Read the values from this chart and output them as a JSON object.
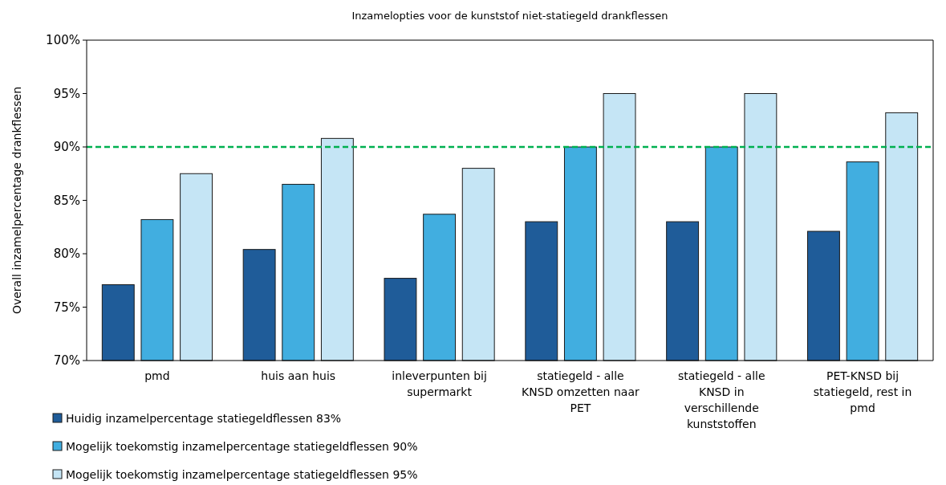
{
  "chart_data": {
    "type": "bar",
    "title": "Inzamelopties voor de kunststof niet-statiegeld drankflessen",
    "ylabel": "Overall inzamelpercentage drankflessen",
    "categories": [
      "pmd",
      "huis aan huis",
      "inleverpunten bij supermarkt",
      "statiegeld - alle KNSD omzetten naar PET",
      "statiegeld - alle KNSD in verschillende kunststoffen",
      "PET-KNSD bij statiegeld, rest in pmd"
    ],
    "series": [
      {
        "name": "Huidig inzamelpercentage statiegeldflessen 83%",
        "color": "#1f5c99",
        "values": [
          77.1,
          80.4,
          77.7,
          83.0,
          83.0,
          82.1
        ]
      },
      {
        "name": "Mogelijk toekomstig inzamelpercentage statiegeldflessen 90%",
        "color": "#41aee0",
        "values": [
          83.2,
          86.5,
          83.7,
          90.0,
          90.0,
          88.6
        ]
      },
      {
        "name": "Mogelijk toekomstig inzamelpercentage statiegeldflessen 95%",
        "color": "#c5e5f5",
        "values": [
          87.5,
          90.8,
          88.0,
          95.0,
          95.0,
          93.2
        ]
      }
    ],
    "ylim": [
      70,
      100
    ],
    "yticks": [
      {
        "value": 70,
        "label": "70%"
      },
      {
        "value": 75,
        "label": "75%"
      },
      {
        "value": 80,
        "label": "80%"
      },
      {
        "value": 85,
        "label": "85%"
      },
      {
        "value": 90,
        "label": "90%"
      },
      {
        "value": 95,
        "label": "95%"
      },
      {
        "value": 100,
        "label": "100%"
      }
    ],
    "ref_lines": [
      {
        "axis": "y",
        "value": 90,
        "color": "#00b050",
        "line_style": "dashed"
      }
    ],
    "legend": "bottom left",
    "grid": false
  }
}
